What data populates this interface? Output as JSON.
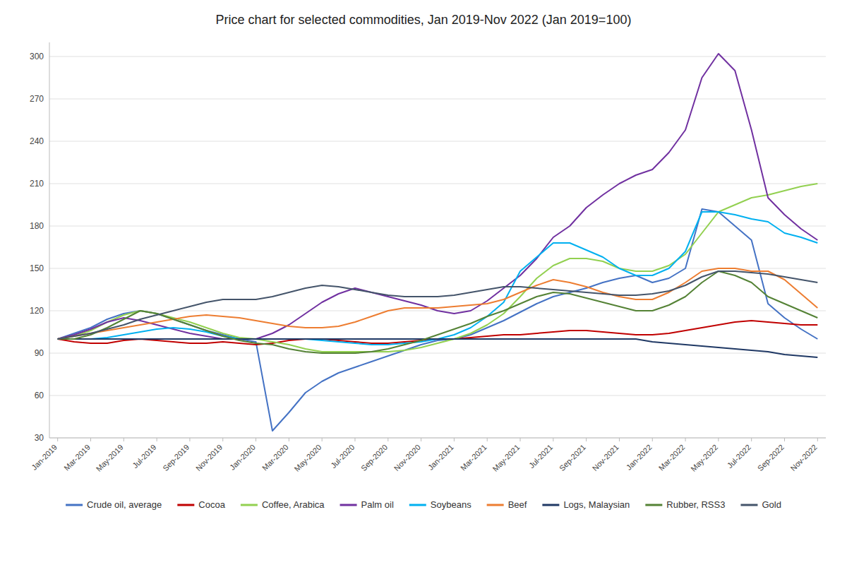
{
  "chart_data": {
    "type": "line",
    "title": "Price chart for selected commodities, Jan 2019-Nov 2022 (Jan 2019=100)",
    "categories": [
      "Jan-2019",
      null,
      "Mar-2019",
      null,
      "May-2019",
      null,
      "Jul-2019",
      null,
      "Sep-2019",
      null,
      "Nov-2019",
      null,
      "Jan-2020",
      null,
      "Mar-2020",
      null,
      "May-2020",
      null,
      "Jul-2020",
      null,
      "Sep-2020",
      null,
      "Nov-2020",
      null,
      "Jan-2021",
      null,
      "Mar-2021",
      null,
      "May-2021",
      null,
      "Jul-2021",
      null,
      "Sep-2021",
      null,
      "Nov-2021",
      null,
      "Jan-2022",
      null,
      "Mar-2022",
      null,
      "May-2022",
      null,
      "Jul-2022",
      null,
      "Sep-2022",
      null,
      "Nov-2022"
    ],
    "ylim": [
      30,
      310
    ],
    "yticks": [
      30,
      60,
      90,
      120,
      150,
      180,
      210,
      240,
      270,
      300
    ],
    "grid": true,
    "legend": "bottom",
    "series": [
      {
        "name": "Crude oil, average",
        "color": "#4472C4",
        "values": [
          100,
          104,
          108,
          114,
          118,
          120,
          118,
          114,
          110,
          106,
          103,
          100,
          98,
          35,
          48,
          62,
          70,
          76,
          80,
          84,
          88,
          92,
          96,
          99,
          100,
          103,
          108,
          113,
          119,
          125,
          130,
          133,
          136,
          140,
          143,
          145,
          140,
          143,
          150,
          192,
          190,
          180,
          170,
          125,
          115,
          107,
          100
        ]
      },
      {
        "name": "Cocoa",
        "color": "#C00000",
        "values": [
          100,
          98,
          97,
          97,
          99,
          100,
          99,
          98,
          97,
          97,
          98,
          97,
          96,
          97,
          99,
          100,
          100,
          99,
          98,
          97,
          97,
          98,
          99,
          100,
          100,
          101,
          102,
          103,
          103,
          104,
          105,
          106,
          106,
          105,
          104,
          103,
          103,
          104,
          106,
          108,
          110,
          112,
          113,
          112,
          111,
          110,
          110
        ]
      },
      {
        "name": "Coffee, Arabica",
        "color": "#92D050",
        "values": [
          100,
          102,
          106,
          112,
          117,
          120,
          118,
          115,
          112,
          108,
          104,
          101,
          100,
          98,
          96,
          93,
          91,
          91,
          91,
          91,
          91,
          92,
          94,
          97,
          100,
          104,
          110,
          118,
          130,
          143,
          152,
          157,
          157,
          155,
          150,
          148,
          148,
          152,
          160,
          175,
          190,
          195,
          200,
          202,
          205,
          208,
          210
        ]
      },
      {
        "name": "Palm oil",
        "color": "#7030A0",
        "values": [
          100,
          103,
          107,
          112,
          115,
          113,
          110,
          107,
          104,
          102,
          100,
          100,
          100,
          104,
          110,
          118,
          126,
          132,
          136,
          133,
          130,
          127,
          124,
          120,
          118,
          120,
          127,
          136,
          145,
          157,
          172,
          180,
          193,
          202,
          210,
          216,
          220,
          232,
          248,
          285,
          302,
          290,
          248,
          200,
          188,
          178,
          170
        ]
      },
      {
        "name": "Soybeans",
        "color": "#00B0F0",
        "values": [
          100,
          100,
          100,
          101,
          103,
          105,
          107,
          108,
          107,
          105,
          102,
          100,
          100,
          100,
          100,
          100,
          99,
          98,
          97,
          96,
          96,
          97,
          98,
          100,
          103,
          108,
          116,
          126,
          148,
          158,
          168,
          168,
          163,
          158,
          150,
          145,
          145,
          150,
          162,
          190,
          190,
          188,
          185,
          183,
          175,
          172,
          168
        ]
      },
      {
        "name": "Beef",
        "color": "#ED7D31",
        "values": [
          100,
          102,
          104,
          106,
          108,
          110,
          112,
          114,
          116,
          117,
          116,
          115,
          113,
          111,
          109,
          108,
          108,
          109,
          112,
          116,
          120,
          122,
          122,
          122,
          123,
          124,
          125,
          128,
          133,
          138,
          142,
          140,
          137,
          133,
          130,
          128,
          128,
          133,
          140,
          148,
          150,
          150,
          148,
          148,
          142,
          132,
          122
        ]
      },
      {
        "name": "Logs, Malaysian",
        "color": "#1F3864",
        "values": [
          100,
          100,
          100,
          100,
          100,
          100,
          100,
          100,
          100,
          100,
          100,
          100,
          100,
          100,
          100,
          100,
          100,
          100,
          100,
          100,
          100,
          100,
          100,
          100,
          100,
          100,
          100,
          100,
          100,
          100,
          100,
          100,
          100,
          100,
          100,
          100,
          98,
          97,
          96,
          95,
          94,
          93,
          92,
          91,
          89,
          88,
          87
        ]
      },
      {
        "name": "Rubber, RSS3",
        "color": "#548235",
        "values": [
          100,
          100,
          103,
          108,
          114,
          120,
          118,
          114,
          110,
          106,
          102,
          99,
          97,
          96,
          93,
          91,
          90,
          90,
          90,
          91,
          93,
          96,
          99,
          103,
          107,
          111,
          116,
          120,
          125,
          130,
          133,
          132,
          129,
          126,
          123,
          120,
          120,
          124,
          130,
          140,
          148,
          145,
          140,
          130,
          125,
          120,
          115
        ]
      },
      {
        "name": "Gold",
        "color": "#44546A",
        "values": [
          100,
          102,
          104,
          107,
          110,
          114,
          117,
          120,
          123,
          126,
          128,
          128,
          128,
          130,
          133,
          136,
          138,
          137,
          135,
          133,
          131,
          130,
          130,
          130,
          131,
          133,
          135,
          137,
          137,
          136,
          135,
          134,
          133,
          132,
          131,
          131,
          132,
          134,
          138,
          144,
          148,
          148,
          147,
          146,
          144,
          142,
          140
        ]
      }
    ]
  }
}
